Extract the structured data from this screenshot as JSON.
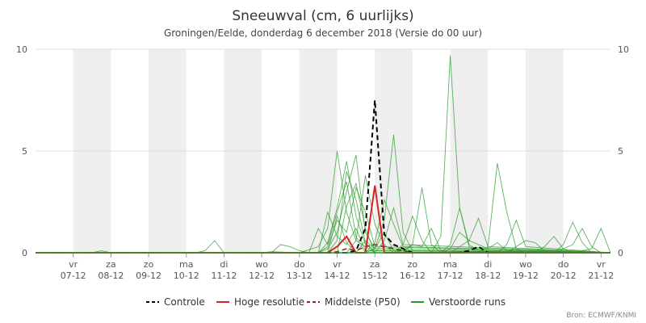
{
  "chart_data": {
    "type": "line",
    "title": "Sneeuwval (cm, 6 uurlijks)",
    "subtitle": "Groningen/Eelde, donderdag 6 december 2018 (Versie do 00 uur)",
    "credit": "Bron: ECMWF/KNMI",
    "ylim": [
      0,
      10
    ],
    "yticks": [
      0,
      5,
      10
    ],
    "xlim": [
      0,
      61
    ],
    "grid": "horizontal",
    "legend_position": "bottom",
    "x_ticks": [
      {
        "day": "vr",
        "date": "07-12",
        "x": 4
      },
      {
        "day": "za",
        "date": "08-12",
        "x": 8
      },
      {
        "day": "zo",
        "date": "09-12",
        "x": 12
      },
      {
        "day": "ma",
        "date": "10-12",
        "x": 16
      },
      {
        "day": "di",
        "date": "11-12",
        "x": 20
      },
      {
        "day": "wo",
        "date": "12-12",
        "x": 24
      },
      {
        "day": "do",
        "date": "13-12",
        "x": 28
      },
      {
        "day": "vr",
        "date": "14-12",
        "x": 32
      },
      {
        "day": "za",
        "date": "15-12",
        "x": 36
      },
      {
        "day": "zo",
        "date": "16-12",
        "x": 40
      },
      {
        "day": "ma",
        "date": "17-12",
        "x": 44
      },
      {
        "day": "di",
        "date": "18-12",
        "x": 48
      },
      {
        "day": "wo",
        "date": "19-12",
        "x": 52
      },
      {
        "day": "do",
        "date": "20-12",
        "x": 56
      },
      {
        "day": "vr",
        "date": "21-12",
        "x": 60
      }
    ],
    "series": [
      {
        "name": "Controle",
        "color": "#000000",
        "dash": "dashed",
        "width": 2,
        "points": [
          [
            0,
            0
          ],
          [
            30,
            0
          ],
          [
            31,
            0
          ],
          [
            32,
            0
          ],
          [
            33,
            0
          ],
          [
            34,
            0.1
          ],
          [
            35,
            1.2
          ],
          [
            36,
            7.5
          ],
          [
            37,
            0.9
          ],
          [
            38,
            0.4
          ],
          [
            39,
            0.2
          ],
          [
            40,
            0
          ],
          [
            44,
            0
          ],
          [
            45,
            0
          ],
          [
            46,
            0.1
          ],
          [
            47,
            0.3
          ],
          [
            48,
            0
          ],
          [
            61,
            0
          ]
        ]
      },
      {
        "name": "Hoge resolutie",
        "color": "#dd2222",
        "dash": "solid",
        "width": 2,
        "points": [
          [
            0,
            0
          ],
          [
            30,
            0
          ],
          [
            31,
            0
          ],
          [
            32,
            0.3
          ],
          [
            33,
            0.8
          ],
          [
            34,
            0
          ],
          [
            35,
            0
          ],
          [
            36,
            3.3
          ],
          [
            37,
            0
          ],
          [
            38,
            0
          ],
          [
            61,
            0
          ]
        ]
      },
      {
        "name": "Middelste (P50)",
        "color": "#992222",
        "dash": "dashed",
        "width": 1.5,
        "points": [
          [
            0,
            0
          ],
          [
            30,
            0
          ],
          [
            31,
            0
          ],
          [
            32,
            0.05
          ],
          [
            33,
            0.2
          ],
          [
            34,
            0.1
          ],
          [
            35,
            0.3
          ],
          [
            36,
            0.4
          ],
          [
            37,
            0.3
          ],
          [
            38,
            0.2
          ],
          [
            39,
            0.1
          ],
          [
            40,
            0
          ],
          [
            61,
            0
          ]
        ]
      },
      {
        "name": "Verstoorde runs",
        "color": "#2a9a2a",
        "dash": "solid",
        "width": 1.5,
        "points": [
          [
            0,
            0
          ],
          [
            61,
            0
          ]
        ]
      }
    ],
    "ensemble_color": "#2a9a2a",
    "ensemble_runs": [
      [
        [
          0,
          0
        ],
        [
          6,
          0
        ],
        [
          7,
          0.1
        ],
        [
          8,
          0
        ],
        [
          24,
          0
        ],
        [
          25,
          0.05
        ],
        [
          28,
          0
        ],
        [
          30,
          0.3
        ],
        [
          31,
          1.2
        ],
        [
          32,
          5
        ],
        [
          33,
          2
        ],
        [
          34,
          0.6
        ],
        [
          35,
          0.3
        ],
        [
          36,
          0
        ],
        [
          61,
          0
        ]
      ],
      [
        [
          0,
          0
        ],
        [
          17,
          0
        ],
        [
          18,
          0.1
        ],
        [
          19,
          0.6
        ],
        [
          20,
          0
        ],
        [
          30,
          0
        ],
        [
          31,
          0.5
        ],
        [
          32,
          2.2
        ],
        [
          33,
          4.5
        ],
        [
          34,
          1.8
        ],
        [
          35,
          0.4
        ],
        [
          36,
          0.1
        ],
        [
          61,
          0
        ]
      ],
      [
        [
          0,
          0
        ],
        [
          30,
          0
        ],
        [
          31,
          0.2
        ],
        [
          32,
          1.0
        ],
        [
          33,
          3.0
        ],
        [
          34,
          4.8
        ],
        [
          35,
          1.0
        ],
        [
          36,
          0.2
        ],
        [
          61,
          0
        ]
      ],
      [
        [
          0,
          0
        ],
        [
          29,
          0
        ],
        [
          30,
          1.2
        ],
        [
          31,
          0.4
        ],
        [
          32,
          2.0
        ],
        [
          33,
          3.5
        ],
        [
          34,
          0.8
        ],
        [
          35,
          0
        ],
        [
          61,
          0
        ]
      ],
      [
        [
          0,
          0
        ],
        [
          30,
          0
        ],
        [
          31,
          0
        ],
        [
          32,
          0.6
        ],
        [
          33,
          4.0
        ],
        [
          34,
          2.6
        ],
        [
          35,
          0.5
        ],
        [
          36,
          0
        ],
        [
          61,
          0
        ]
      ],
      [
        [
          0,
          0
        ],
        [
          30,
          0
        ],
        [
          31,
          0.3
        ],
        [
          32,
          1.6
        ],
        [
          33,
          1.0
        ],
        [
          34,
          3.2
        ],
        [
          35,
          2.0
        ],
        [
          36,
          0.3
        ],
        [
          61,
          0
        ]
      ],
      [
        [
          0,
          0
        ],
        [
          33,
          0
        ],
        [
          34,
          0.6
        ],
        [
          35,
          3.8
        ],
        [
          36,
          1.4
        ],
        [
          37,
          0.4
        ],
        [
          38,
          0
        ],
        [
          61,
          0
        ]
      ],
      [
        [
          0,
          0
        ],
        [
          35,
          0
        ],
        [
          36,
          0.2
        ],
        [
          37,
          1.6
        ],
        [
          38,
          5.8
        ],
        [
          39,
          1.0
        ],
        [
          40,
          0.1
        ],
        [
          61,
          0
        ]
      ],
      [
        [
          0,
          0
        ],
        [
          35,
          0
        ],
        [
          36,
          0.5
        ],
        [
          37,
          2.6
        ],
        [
          38,
          1.4
        ],
        [
          39,
          0.3
        ],
        [
          61,
          0
        ]
      ],
      [
        [
          0,
          0
        ],
        [
          36,
          0
        ],
        [
          37,
          0.6
        ],
        [
          38,
          2.2
        ],
        [
          39,
          0.4
        ],
        [
          61,
          0
        ]
      ],
      [
        [
          0,
          0
        ],
        [
          38,
          0
        ],
        [
          39,
          0.4
        ],
        [
          40,
          1.8
        ],
        [
          41,
          0.6
        ],
        [
          42,
          0
        ],
        [
          61,
          0
        ]
      ],
      [
        [
          0,
          0
        ],
        [
          38,
          0
        ],
        [
          39,
          0.1
        ],
        [
          40,
          0.4
        ],
        [
          41,
          3.2
        ],
        [
          42,
          0.4
        ],
        [
          43,
          0
        ],
        [
          61,
          0
        ]
      ],
      [
        [
          0,
          0
        ],
        [
          42,
          0
        ],
        [
          43,
          0.8
        ],
        [
          44,
          9.7
        ],
        [
          45,
          2.2
        ],
        [
          46,
          0.3
        ],
        [
          47,
          0
        ],
        [
          61,
          0
        ]
      ],
      [
        [
          0,
          0
        ],
        [
          43,
          0
        ],
        [
          44,
          0.4
        ],
        [
          45,
          2.2
        ],
        [
          46,
          0.4
        ],
        [
          47,
          0.1
        ],
        [
          61,
          0
        ]
      ],
      [
        [
          0,
          0
        ],
        [
          43,
          0
        ],
        [
          44,
          0.2
        ],
        [
          45,
          1.0
        ],
        [
          46,
          0.6
        ],
        [
          47,
          1.7
        ],
        [
          48,
          0.3
        ],
        [
          61,
          0
        ]
      ],
      [
        [
          0,
          0
        ],
        [
          47,
          0
        ],
        [
          48,
          0.3
        ],
        [
          49,
          4.4
        ],
        [
          50,
          2.0
        ],
        [
          51,
          0.2
        ],
        [
          52,
          0
        ],
        [
          61,
          0
        ]
      ],
      [
        [
          0,
          0
        ],
        [
          49,
          0
        ],
        [
          50,
          0.4
        ],
        [
          51,
          1.6
        ],
        [
          52,
          0.3
        ],
        [
          61,
          0
        ]
      ],
      [
        [
          0,
          0
        ],
        [
          55,
          0
        ],
        [
          56,
          0.4
        ],
        [
          57,
          1.5
        ],
        [
          58,
          0.5
        ],
        [
          59,
          0
        ],
        [
          61,
          0
        ]
      ],
      [
        [
          0,
          0
        ],
        [
          55,
          0
        ],
        [
          56,
          0.2
        ],
        [
          57,
          0.4
        ],
        [
          58,
          1.2
        ],
        [
          59,
          0.3
        ],
        [
          60,
          0
        ],
        [
          61,
          0
        ]
      ],
      [
        [
          0,
          0
        ],
        [
          57,
          0
        ],
        [
          58,
          0.1
        ],
        [
          59,
          0.2
        ],
        [
          60,
          1.2
        ],
        [
          61,
          0
        ]
      ],
      [
        [
          0,
          0
        ],
        [
          53,
          0
        ],
        [
          54,
          0.3
        ],
        [
          55,
          0.8
        ],
        [
          56,
          0.2
        ],
        [
          57,
          0
        ],
        [
          61,
          0
        ]
      ],
      [
        [
          0,
          0
        ],
        [
          31,
          0
        ],
        [
          32,
          1.8
        ],
        [
          33,
          0.5
        ],
        [
          34,
          0
        ],
        [
          35,
          0.6
        ],
        [
          36,
          0.2
        ],
        [
          37,
          1.0
        ],
        [
          38,
          0.1
        ],
        [
          61,
          0
        ]
      ],
      [
        [
          0,
          0
        ],
        [
          30,
          0
        ],
        [
          31,
          2.0
        ],
        [
          32,
          0.8
        ],
        [
          33,
          0.4
        ],
        [
          34,
          1.2
        ],
        [
          35,
          0.1
        ],
        [
          61,
          0
        ]
      ],
      [
        [
          0,
          0
        ],
        [
          32,
          0
        ],
        [
          33,
          2.3
        ],
        [
          34,
          3.4
        ],
        [
          35,
          1.2
        ],
        [
          36,
          0
        ],
        [
          61,
          0
        ]
      ],
      [
        [
          0,
          0
        ],
        [
          39,
          0
        ],
        [
          40,
          0.4
        ],
        [
          41,
          0.3
        ],
        [
          42,
          1.2
        ],
        [
          43,
          0.1
        ],
        [
          44,
          0
        ],
        [
          61,
          0
        ]
      ],
      [
        [
          0,
          0
        ],
        [
          25,
          0
        ],
        [
          26,
          0.4
        ],
        [
          27,
          0.3
        ],
        [
          28,
          0.1
        ],
        [
          29,
          0
        ],
        [
          61,
          0
        ]
      ],
      [
        [
          0,
          0
        ],
        [
          44,
          0
        ],
        [
          45,
          0.3
        ],
        [
          46,
          0.6
        ],
        [
          47,
          0.4
        ],
        [
          48,
          0.2
        ],
        [
          49,
          0.5
        ],
        [
          50,
          0.1
        ],
        [
          61,
          0
        ]
      ],
      [
        [
          0,
          0
        ],
        [
          50,
          0
        ],
        [
          51,
          0.3
        ],
        [
          52,
          0.6
        ],
        [
          53,
          0.5
        ],
        [
          54,
          0.1
        ],
        [
          55,
          0
        ],
        [
          61,
          0
        ]
      ]
    ]
  }
}
